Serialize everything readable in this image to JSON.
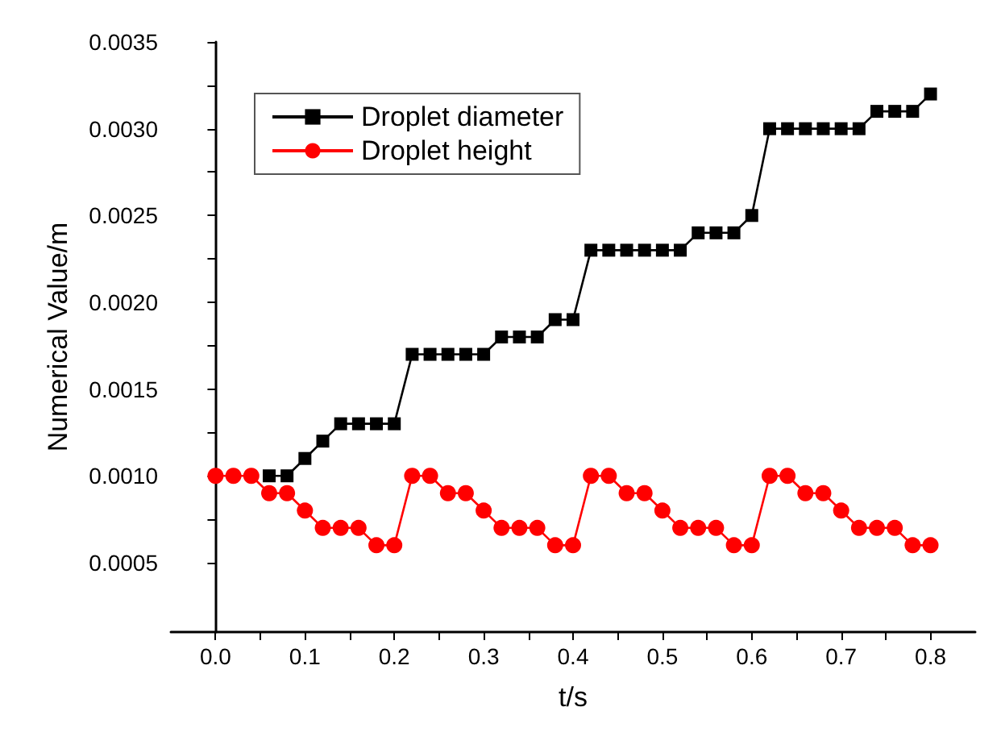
{
  "chart_data": {
    "type": "line",
    "xlabel": "t/s",
    "ylabel": "Numerical Value/m",
    "x": [
      0,
      0.02,
      0.04,
      0.06,
      0.08,
      0.1,
      0.12,
      0.14,
      0.16,
      0.18,
      0.2,
      0.22,
      0.24,
      0.26,
      0.28,
      0.3,
      0.32,
      0.34,
      0.36,
      0.38,
      0.4,
      0.42,
      0.44,
      0.46,
      0.48,
      0.5,
      0.52,
      0.54,
      0.56,
      0.58,
      0.6,
      0.62,
      0.64,
      0.66,
      0.68,
      0.7,
      0.72,
      0.74,
      0.76,
      0.78,
      0.8
    ],
    "series": [
      {
        "name": "Droplet diameter",
        "color": "#000000",
        "marker": "square",
        "values": [
          null,
          null,
          null,
          0.001,
          0.001,
          0.0011,
          0.0012,
          0.0013,
          0.0013,
          0.0013,
          0.0013,
          0.0017,
          0.0017,
          0.0017,
          0.0017,
          0.0017,
          0.0018,
          0.0018,
          0.0018,
          0.0019,
          0.0019,
          0.0023,
          0.0023,
          0.0023,
          0.0023,
          0.0023,
          0.0023,
          0.0024,
          0.0024,
          0.0024,
          0.0025,
          0.003,
          0.003,
          0.003,
          0.003,
          0.003,
          0.003,
          0.0031,
          0.0031,
          0.0031,
          0.0032
        ]
      },
      {
        "name": "Droplet height",
        "color": "#ff0000",
        "marker": "circle",
        "values": [
          0.001,
          0.001,
          0.001,
          0.0009,
          0.0009,
          0.0008,
          0.0007,
          0.0007,
          0.0007,
          0.0006,
          0.0006,
          0.001,
          0.001,
          0.0009,
          0.0009,
          0.0008,
          0.0007,
          0.0007,
          0.0007,
          0.0006,
          0.0006,
          0.001,
          0.001,
          0.0009,
          0.0009,
          0.0008,
          0.0007,
          0.0007,
          0.0007,
          0.0006,
          0.0006,
          0.001,
          0.001,
          0.0009,
          0.0009,
          0.0008,
          0.0007,
          0.0007,
          0.0007,
          0.0006,
          0.0006
        ]
      }
    ],
    "xlim": [
      -0.05,
      0.85
    ],
    "xticks": [
      {
        "value": 0,
        "label": "0.0"
      },
      {
        "value": 0.05,
        "label": null
      },
      {
        "value": 0.1,
        "label": "0.1"
      },
      {
        "value": 0.15,
        "label": null
      },
      {
        "value": 0.2,
        "label": "0.2"
      },
      {
        "value": 0.25,
        "label": null
      },
      {
        "value": 0.3,
        "label": "0.3"
      },
      {
        "value": 0.35,
        "label": null
      },
      {
        "value": 0.4,
        "label": "0.4"
      },
      {
        "value": 0.45,
        "label": null
      },
      {
        "value": 0.5,
        "label": "0.5"
      },
      {
        "value": 0.55,
        "label": null
      },
      {
        "value": 0.6,
        "label": "0.6"
      },
      {
        "value": 0.65,
        "label": null
      },
      {
        "value": 0.7,
        "label": "0.7"
      },
      {
        "value": 0.75,
        "label": null
      },
      {
        "value": 0.8,
        "label": "0.8"
      }
    ],
    "ylim": [
      0.0001,
      0.0035
    ],
    "yticks": [
      {
        "value": 0.0005,
        "label": "0.0005"
      },
      {
        "value": 0.00075,
        "label": null
      },
      {
        "value": 0.001,
        "label": "0.0010"
      },
      {
        "value": 0.00125,
        "label": null
      },
      {
        "value": 0.0015,
        "label": "0.0015"
      },
      {
        "value": 0.00175,
        "label": null
      },
      {
        "value": 0.002,
        "label": "0.0020"
      },
      {
        "value": 0.00225,
        "label": null
      },
      {
        "value": 0.0025,
        "label": "0.0025"
      },
      {
        "value": 0.00275,
        "label": null
      },
      {
        "value": 0.003,
        "label": "0.0030"
      },
      {
        "value": 0.00325,
        "label": null
      },
      {
        "value": 0.0035,
        "label": "0.0035"
      }
    ],
    "grid": false,
    "legend": "top left",
    "line_style": "solid"
  }
}
